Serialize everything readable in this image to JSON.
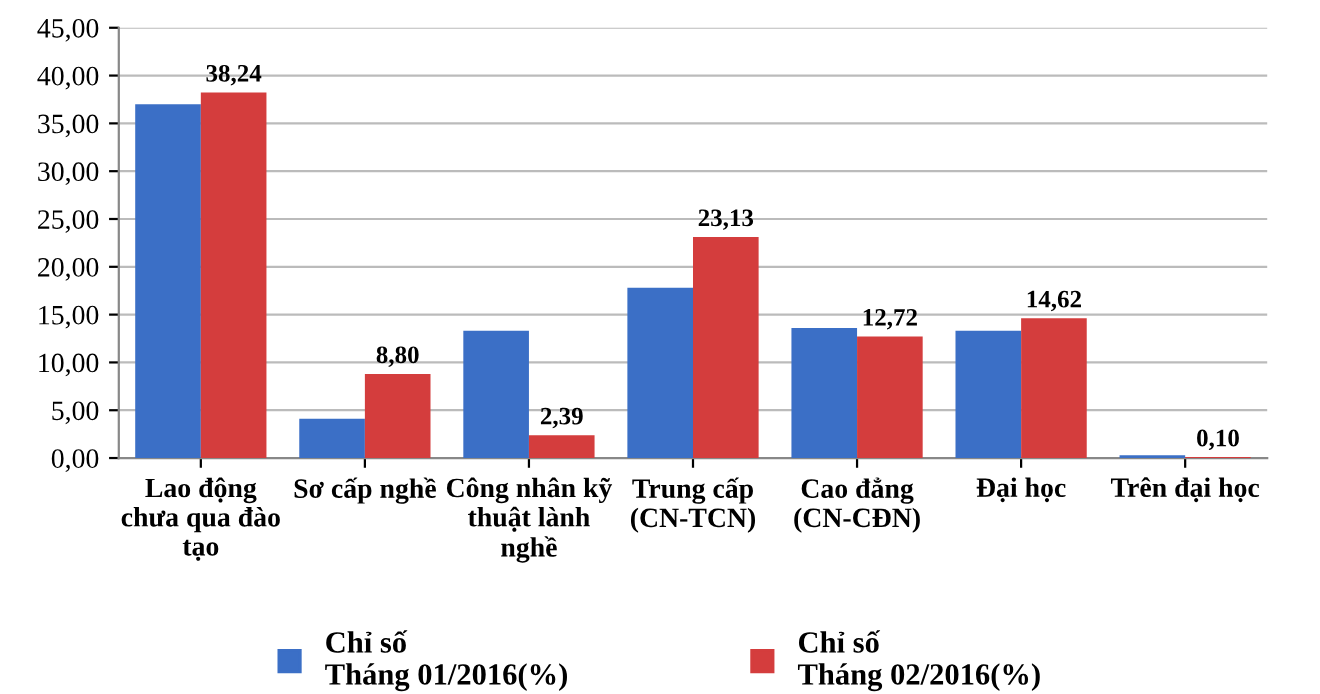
{
  "chart_data": {
    "type": "bar",
    "categories": [
      "Lao động\nchưa qua đào\ntạo",
      "Sơ cấp nghề",
      "Công nhân kỹ\nthuật lành\nnghề",
      "Trung cấp\n(CN-TCN)",
      "Cao đẳng\n(CN-CĐN)",
      "Đại học",
      "Trên đại học"
    ],
    "series": [
      {
        "name": "Chỉ số\nTháng 01/2016(%)",
        "color": "#3b6fc6",
        "values": [
          37.0,
          4.1,
          13.3,
          17.8,
          13.6,
          13.3,
          0.3
        ]
      },
      {
        "name": "Chỉ số\nTháng 02/2016(%)",
        "color": "#d43d3d",
        "values": [
          38.24,
          8.8,
          2.39,
          23.13,
          12.72,
          14.62,
          0.1
        ],
        "value_labels": [
          "38,24",
          "8,80",
          "2,39",
          "23,13",
          "12,72",
          "14,62",
          "0,10"
        ]
      }
    ],
    "ylim": [
      0,
      45
    ],
    "yticks": [
      {
        "value": 0,
        "label": "0,00"
      },
      {
        "value": 5,
        "label": "5,00"
      },
      {
        "value": 10,
        "label": "10,00"
      },
      {
        "value": 15,
        "label": "15,00"
      },
      {
        "value": 20,
        "label": "20,00"
      },
      {
        "value": 25,
        "label": "25,00"
      },
      {
        "value": 30,
        "label": "30,00"
      },
      {
        "value": 35,
        "label": "35,00"
      },
      {
        "value": 40,
        "label": "40,00"
      },
      {
        "value": 45,
        "label": "45,00"
      }
    ],
    "grid": "y",
    "legend": "bottom"
  }
}
